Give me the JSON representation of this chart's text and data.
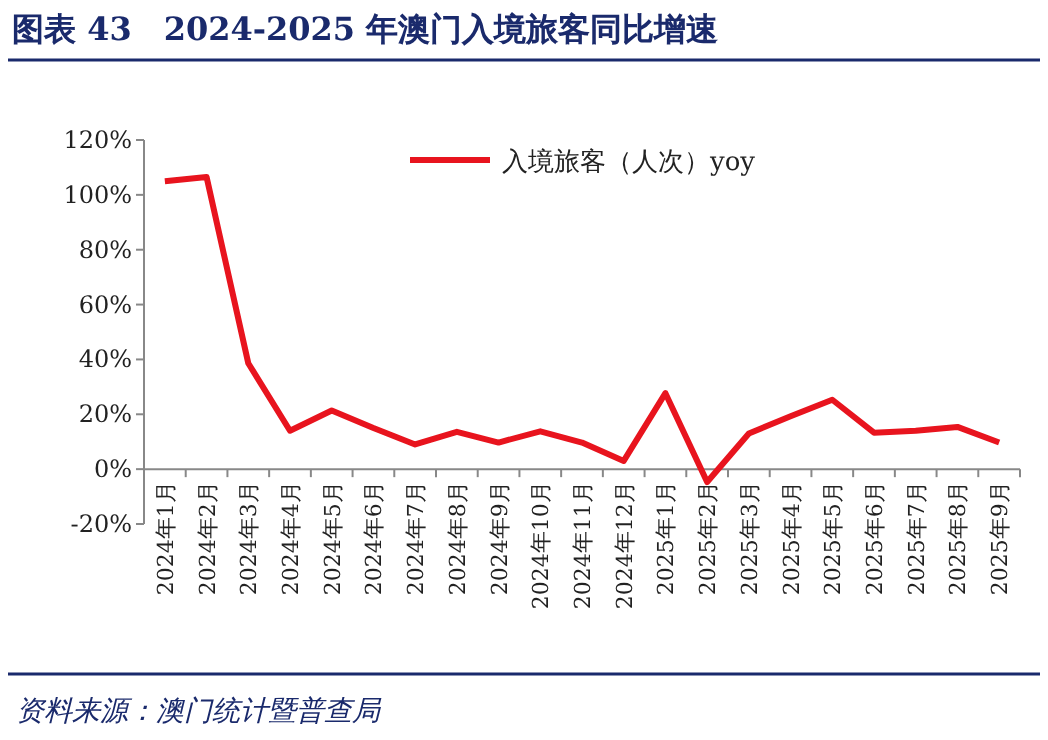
{
  "chart_data": {
    "type": "line",
    "title": "图表 43　2024-2025 年澳门入境旅客同比增速",
    "categories": [
      "2024年1月",
      "2024年2月",
      "2024年3月",
      "2024年4月",
      "2024年5月",
      "2024年6月",
      "2024年7月",
      "2024年8月",
      "2024年9月",
      "2024年10月",
      "2024年11月",
      "2024年12月",
      "2025年1月",
      "2025年2月",
      "2025年3月",
      "2025年4月",
      "2025年5月",
      "2025年6月",
      "2025年7月",
      "2025年8月",
      "2025年9月"
    ],
    "series": [
      {
        "name": "入境旅客（人次）yoy",
        "color": "#e8141e",
        "values": [
          105,
          106.5,
          38.6,
          14,
          21.4,
          15,
          9,
          13.6,
          9.7,
          13.8,
          9.7,
          3,
          27.7,
          -4.7,
          13,
          19.3,
          25.3,
          13.3,
          14,
          15.4,
          9.7
        ]
      }
    ],
    "ylim": [
      -20,
      120
    ],
    "yticks": [
      {
        "value": -20,
        "label": "-20%"
      },
      {
        "value": 0,
        "label": "0%"
      },
      {
        "value": 20,
        "label": "20%"
      },
      {
        "value": 40,
        "label": "40%"
      },
      {
        "value": 60,
        "label": "60%"
      },
      {
        "value": 80,
        "label": "80%"
      },
      {
        "value": 100,
        "label": "100%"
      },
      {
        "value": 120,
        "label": "120%"
      }
    ],
    "grid": false,
    "legend": "top right",
    "marker": "none",
    "line_style": "solid",
    "annotations": [
      "资料来源：澳门统计暨普查局"
    ]
  }
}
